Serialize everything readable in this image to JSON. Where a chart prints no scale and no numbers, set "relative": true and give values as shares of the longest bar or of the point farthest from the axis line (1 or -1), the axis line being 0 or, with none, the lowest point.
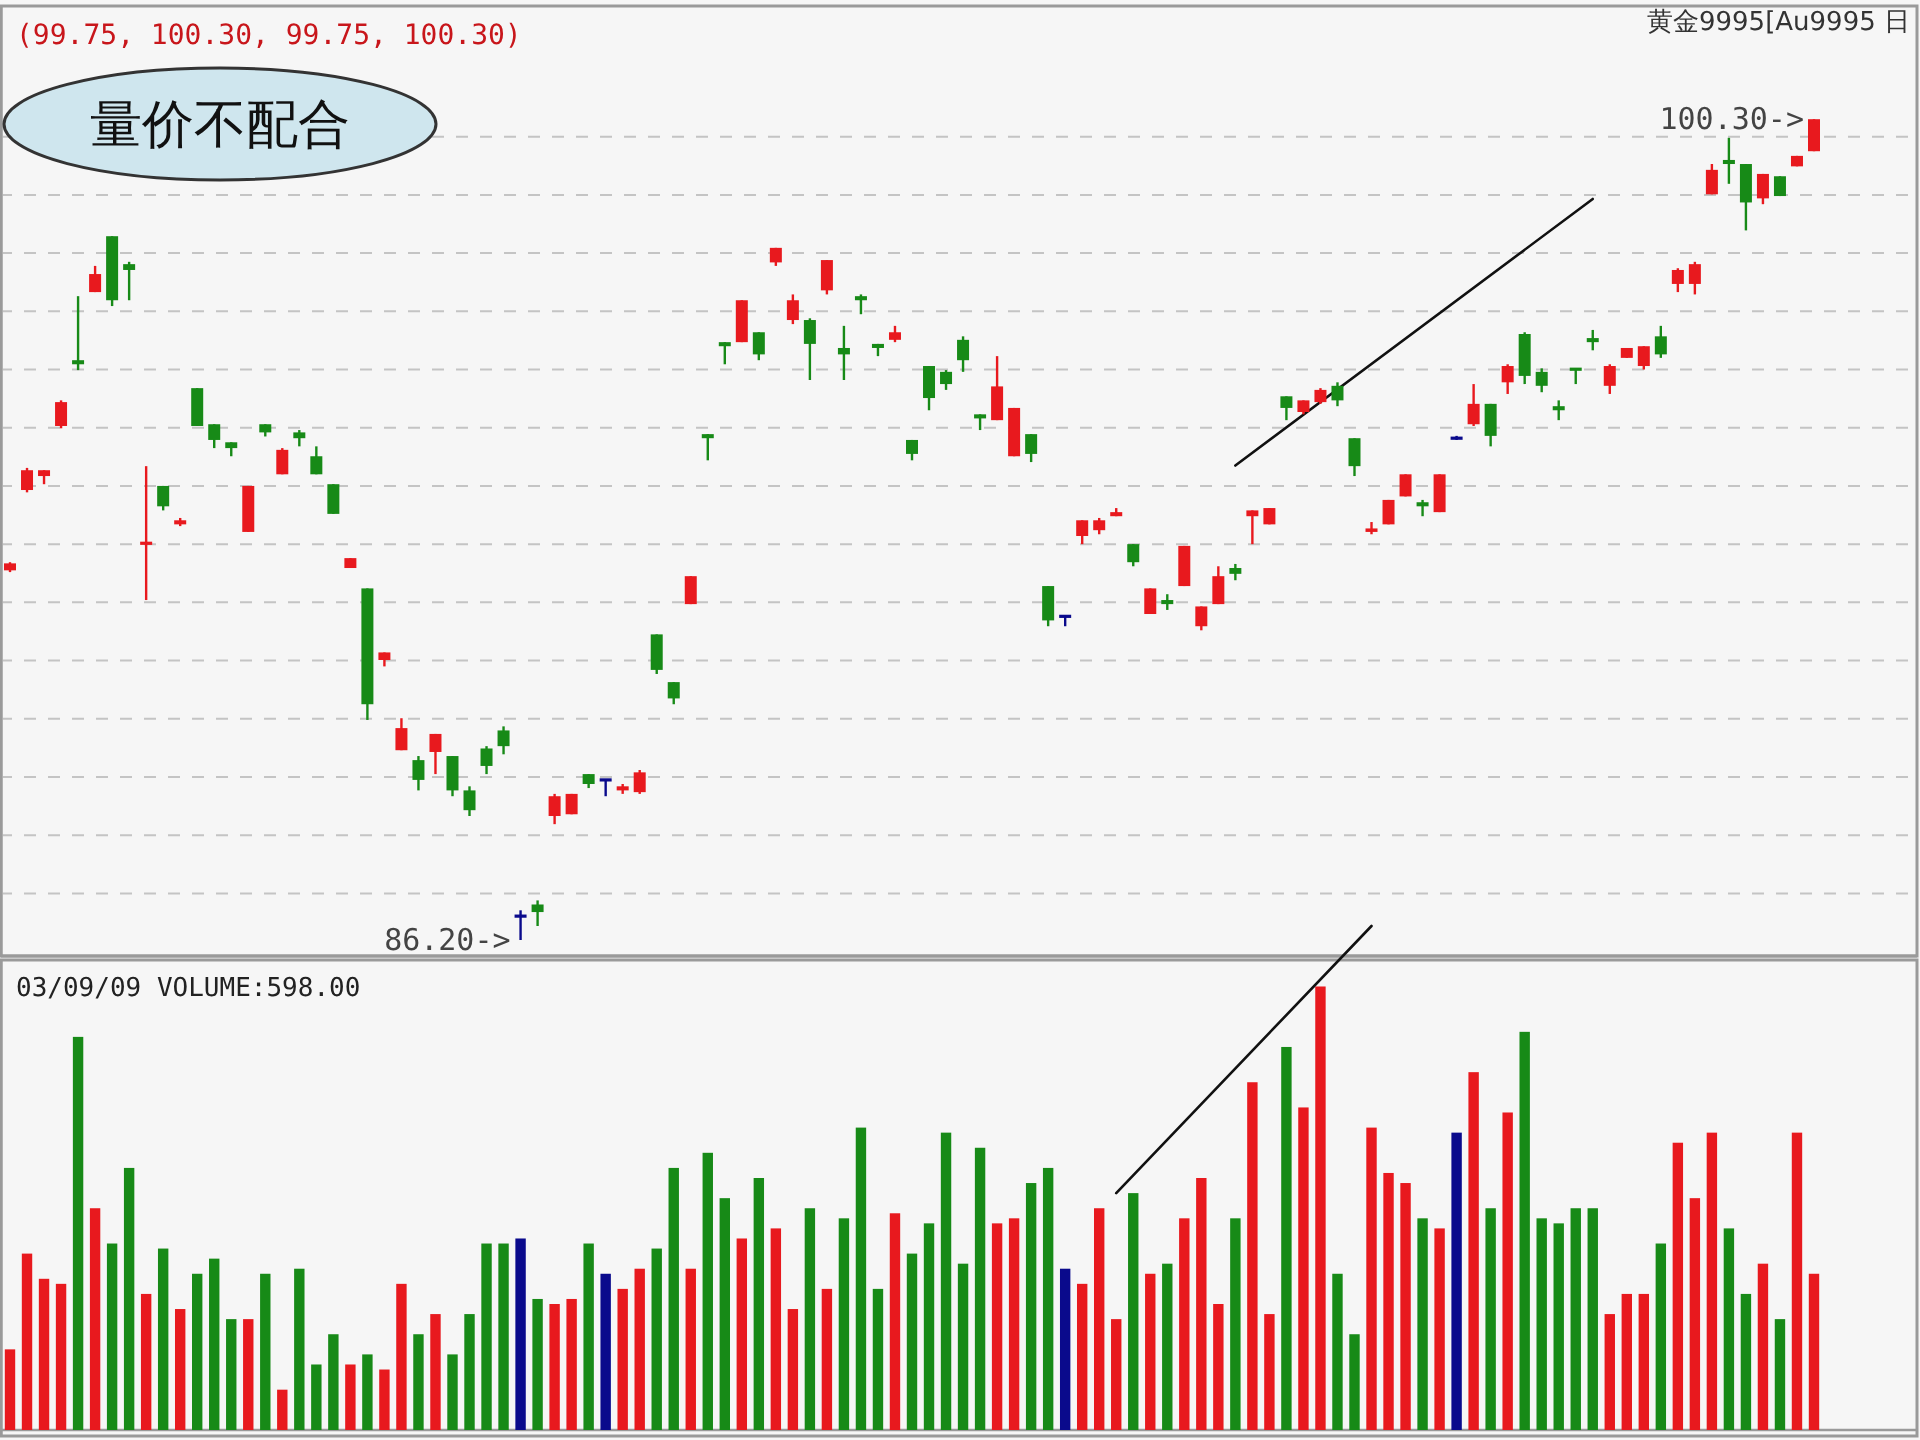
{
  "chart_data": [
    {
      "type": "candlestick",
      "categories": [
        null,
        null,
        null,
        null,
        null,
        null,
        null,
        null,
        null,
        null,
        null,
        null,
        null,
        null,
        null,
        null,
        null,
        null,
        null,
        null,
        null,
        null,
        null,
        null,
        null,
        null,
        null,
        null,
        null,
        null,
        null,
        null,
        null,
        null,
        null,
        null,
        null,
        null,
        null,
        null,
        null,
        null,
        null,
        null,
        null,
        null,
        null,
        null,
        null,
        null,
        null,
        null,
        null,
        null,
        null,
        null,
        null,
        null,
        null,
        null,
        null,
        null,
        null,
        null,
        null,
        null,
        null,
        null,
        null,
        null,
        null,
        null,
        null,
        null,
        null,
        null,
        null,
        null,
        null,
        null,
        null,
        null,
        null,
        null,
        null,
        null,
        null,
        null,
        null,
        null,
        null,
        null,
        null,
        null,
        null,
        null,
        null,
        null,
        null,
        null,
        null,
        null,
        null,
        null,
        null,
        null,
        null
      ],
      "ohlc": [
        [
          92.55,
          92.69,
          92.52,
          92.67
        ],
        [
          93.93,
          94.31,
          93.89,
          94.27
        ],
        [
          94.17,
          94.27,
          94.03,
          94.27
        ],
        [
          95.03,
          95.47,
          94.99,
          95.44
        ],
        [
          96.16,
          97.26,
          95.99,
          96.09
        ],
        [
          97.33,
          97.78,
          97.33,
          97.64
        ],
        [
          98.29,
          98.29,
          97.09,
          97.19
        ],
        [
          97.81,
          97.85,
          97.19,
          97.71
        ],
        [
          93.0,
          94.34,
          92.04,
          93.03
        ],
        [
          94.0,
          94.0,
          93.58,
          93.65
        ],
        [
          93.34,
          93.45,
          93.31,
          93.41
        ],
        [
          95.68,
          95.68,
          95.03,
          95.03
        ],
        [
          95.06,
          95.06,
          94.65,
          94.79
        ],
        [
          94.75,
          94.75,
          94.51,
          94.65
        ],
        [
          93.21,
          94.0,
          93.21,
          94.0
        ],
        [
          95.06,
          95.06,
          94.85,
          94.92
        ],
        [
          94.2,
          94.65,
          94.2,
          94.62
        ],
        [
          94.92,
          94.96,
          94.68,
          94.82
        ],
        [
          94.51,
          94.68,
          94.2,
          94.2
        ],
        [
          94.03,
          94.03,
          93.52,
          93.52
        ],
        [
          92.59,
          92.76,
          92.59,
          92.76
        ],
        [
          92.24,
          92.24,
          89.98,
          90.25
        ],
        [
          91.01,
          91.14,
          90.9,
          91.14
        ],
        [
          89.46,
          90.01,
          89.46,
          89.84
        ],
        [
          89.29,
          89.36,
          88.77,
          88.95
        ],
        [
          89.43,
          89.74,
          89.05,
          89.74
        ],
        [
          89.36,
          89.36,
          88.67,
          88.77
        ],
        [
          88.77,
          88.84,
          88.33,
          88.43
        ],
        [
          89.49,
          89.53,
          89.05,
          89.19
        ],
        [
          89.8,
          89.87,
          89.39,
          89.53
        ],
        [
          86.61,
          86.71,
          86.2,
          86.61
        ],
        [
          86.81,
          86.88,
          86.44,
          86.68
        ],
        [
          88.33,
          88.71,
          88.19,
          88.67
        ],
        [
          88.36,
          88.71,
          88.36,
          88.71
        ],
        [
          89.05,
          89.05,
          88.81,
          88.88
        ],
        [
          88.95,
          88.95,
          88.67,
          88.95
        ],
        [
          88.77,
          88.88,
          88.71,
          88.84
        ],
        [
          88.74,
          89.12,
          88.71,
          89.08
        ],
        [
          91.45,
          91.45,
          90.77,
          90.84
        ],
        [
          90.63,
          90.63,
          90.25,
          90.35
        ],
        [
          91.97,
          92.45,
          91.97,
          92.45
        ],
        [
          94.89,
          94.89,
          94.44,
          94.82
        ],
        [
          96.47,
          96.47,
          96.09,
          96.4
        ],
        [
          96.47,
          97.19,
          96.47,
          97.19
        ],
        [
          96.64,
          96.64,
          96.16,
          96.26
        ],
        [
          97.84,
          98.09,
          97.78,
          98.09
        ],
        [
          96.85,
          97.29,
          96.78,
          97.19
        ],
        [
          96.85,
          96.88,
          95.82,
          96.44
        ],
        [
          97.36,
          97.88,
          97.29,
          97.88
        ],
        [
          96.37,
          96.75,
          95.82,
          96.26
        ],
        [
          97.26,
          97.29,
          96.95,
          97.19
        ],
        [
          96.44,
          96.44,
          96.23,
          96.37
        ],
        [
          96.51,
          96.75,
          96.47,
          96.64
        ],
        [
          94.79,
          94.79,
          94.44,
          94.55
        ],
        [
          96.06,
          96.06,
          95.3,
          95.51
        ],
        [
          95.96,
          95.99,
          95.65,
          95.75
        ],
        [
          96.51,
          96.57,
          95.96,
          96.16
        ],
        [
          95.23,
          95.23,
          94.96,
          95.16
        ],
        [
          95.13,
          96.23,
          95.13,
          95.71
        ],
        [
          94.51,
          95.34,
          94.51,
          95.34
        ],
        [
          94.89,
          94.89,
          94.41,
          94.55
        ],
        [
          92.28,
          92.28,
          91.59,
          91.69
        ],
        [
          91.76,
          91.76,
          91.59,
          91.76
        ],
        [
          93.14,
          93.41,
          93.0,
          93.41
        ],
        [
          93.24,
          93.45,
          93.17,
          93.41
        ],
        [
          93.48,
          93.62,
          93.48,
          93.55
        ],
        [
          93.0,
          93.0,
          92.62,
          92.69
        ],
        [
          91.8,
          92.24,
          91.8,
          92.24
        ],
        [
          92.04,
          92.14,
          91.87,
          91.97
        ],
        [
          92.28,
          92.97,
          92.28,
          92.97
        ],
        [
          91.59,
          91.93,
          91.52,
          91.93
        ],
        [
          91.97,
          92.62,
          91.97,
          92.45
        ],
        [
          92.59,
          92.66,
          92.38,
          92.49
        ],
        [
          93.48,
          93.58,
          93.0,
          93.58
        ],
        [
          93.34,
          93.62,
          93.34,
          93.62
        ],
        [
          95.54,
          95.54,
          95.13,
          95.34
        ],
        [
          95.27,
          95.47,
          95.23,
          95.47
        ],
        [
          95.44,
          95.68,
          95.41,
          95.65
        ],
        [
          95.72,
          95.78,
          95.37,
          95.47
        ],
        [
          94.82,
          94.82,
          94.17,
          94.34
        ],
        [
          93.21,
          93.38,
          93.17,
          93.27
        ],
        [
          93.34,
          93.76,
          93.34,
          93.76
        ],
        [
          93.82,
          94.2,
          93.82,
          94.2
        ],
        [
          93.72,
          93.76,
          93.48,
          93.65
        ],
        [
          93.55,
          94.2,
          93.55,
          94.2
        ],
        [
          94.82,
          94.86,
          94.79,
          94.82
        ],
        [
          95.06,
          95.75,
          95.03,
          95.41
        ],
        [
          95.41,
          95.41,
          94.68,
          94.86
        ],
        [
          95.78,
          96.09,
          95.58,
          96.06
        ],
        [
          96.61,
          96.64,
          95.75,
          95.89
        ],
        [
          95.96,
          96.02,
          95.61,
          95.72
        ],
        [
          95.37,
          95.47,
          95.13,
          95.3
        ],
        [
          96.02,
          96.02,
          95.75,
          95.99
        ],
        [
          96.54,
          96.68,
          96.33,
          96.47
        ],
        [
          95.72,
          96.09,
          95.58,
          96.06
        ],
        [
          96.2,
          96.37,
          96.2,
          96.37
        ],
        [
          96.06,
          96.4,
          96.0,
          96.4
        ],
        [
          96.57,
          96.75,
          96.2,
          96.26
        ],
        [
          97.47,
          97.74,
          97.33,
          97.71
        ],
        [
          97.47,
          97.85,
          97.29,
          97.81
        ],
        [
          99.01,
          99.53,
          99.01,
          99.43
        ],
        [
          99.6,
          99.98,
          99.19,
          99.53
        ],
        [
          99.53,
          99.53,
          98.39,
          98.87
        ],
        [
          98.94,
          99.36,
          98.84,
          99.36
        ],
        [
          99.32,
          99.32,
          98.98,
          98.98
        ],
        [
          99.49,
          99.67,
          99.49,
          99.67
        ],
        [
          99.75,
          100.3,
          99.75,
          100.3
        ]
      ],
      "colors": [
        "#e8191e",
        "#e8191e",
        "#e8191e",
        "#e8191e",
        "#178a17",
        "#e8191e",
        "#178a17",
        "#178a17",
        "#e8191e",
        "#178a17",
        "#e8191e",
        "#178a17",
        "#178a17",
        "#178a17",
        "#e8191e",
        "#178a17",
        "#e8191e",
        "#178a17",
        "#178a17",
        "#178a17",
        "#e8191e",
        "#178a17",
        "#e8191e",
        "#e8191e",
        "#178a17",
        "#e8191e",
        "#178a17",
        "#178a17",
        "#178a17",
        "#178a17",
        "#0a0a8c",
        "#178a17",
        "#e8191e",
        "#e8191e",
        "#178a17",
        "#0a0a8c",
        "#e8191e",
        "#e8191e",
        "#178a17",
        "#178a17",
        "#e8191e",
        "#178a17",
        "#178a17",
        "#e8191e",
        "#178a17",
        "#e8191e",
        "#e8191e",
        "#178a17",
        "#e8191e",
        "#178a17",
        "#178a17",
        "#178a17",
        "#e8191e",
        "#178a17",
        "#178a17",
        "#178a17",
        "#178a17",
        "#178a17",
        "#e8191e",
        "#e8191e",
        "#178a17",
        "#178a17",
        "#0a0a8c",
        "#e8191e",
        "#e8191e",
        "#e8191e",
        "#178a17",
        "#e8191e",
        "#178a17",
        "#e8191e",
        "#e8191e",
        "#e8191e",
        "#178a17",
        "#e8191e",
        "#e8191e",
        "#178a17",
        "#e8191e",
        "#e8191e",
        "#178a17",
        "#178a17",
        "#e8191e",
        "#e8191e",
        "#e8191e",
        "#178a17",
        "#e8191e",
        "#0a0a8c",
        "#e8191e",
        "#178a17",
        "#e8191e",
        "#178a17",
        "#178a17",
        "#178a17",
        "#178a17",
        "#178a17",
        "#e8191e",
        "#e8191e",
        "#e8191e",
        "#178a17",
        "#e8191e",
        "#e8191e",
        "#e8191e",
        "#178a17",
        "#178a17",
        "#e8191e",
        "#178a17",
        "#e8191e",
        "#e8191e"
      ],
      "series": [
        {
          "type": "line",
          "color": "#111111",
          "values": [
            null,
            null,
            null,
            null,
            null,
            null,
            null,
            null,
            null,
            null,
            null,
            null,
            null,
            null,
            null,
            null,
            null,
            null,
            null,
            null,
            null,
            null,
            null,
            null,
            null,
            null,
            null,
            null,
            null,
            null,
            null,
            null,
            null,
            null,
            null,
            null,
            null,
            null,
            null,
            null,
            null,
            null,
            null,
            null,
            null,
            null,
            null,
            null,
            null,
            null,
            null,
            null,
            null,
            null,
            null,
            null,
            null,
            null,
            null,
            null,
            null,
            null,
            null,
            null,
            null,
            null,
            null,
            null,
            null,
            null,
            null,
            null,
            94.35,
            null,
            null,
            null,
            null,
            null,
            null,
            null,
            null,
            null,
            null,
            null,
            null,
            null,
            null,
            null,
            null,
            null,
            null,
            null,
            null,
            98.93,
            null,
            null,
            null,
            null,
            null,
            null,
            null,
            null,
            null,
            null,
            null,
            null,
            null
          ]
        }
      ],
      "yticks": [
        {
          "value": 87,
          "label": null
        },
        {
          "value": 88,
          "label": null
        },
        {
          "value": 89,
          "label": null
        },
        {
          "value": 90,
          "label": null
        },
        {
          "value": 91,
          "label": null
        },
        {
          "value": 92,
          "label": null
        },
        {
          "value": 93,
          "label": null
        },
        {
          "value": 94,
          "label": null
        },
        {
          "value": 95,
          "label": null
        },
        {
          "value": 96,
          "label": null
        },
        {
          "value": 97,
          "label": null
        },
        {
          "value": 98,
          "label": null
        },
        {
          "value": 99,
          "label": null
        },
        {
          "value": 100,
          "label": null
        }
      ],
      "grid": "y",
      "annotations": [
        "(99.75, 100.30, 99.75, 100.30)",
        "黄金9995[Au9995 日",
        "量价不配合",
        "100.30->",
        "86.20->"
      ]
    },
    {
      "type": "bar",
      "relative": true,
      "categories": [
        null,
        null,
        null,
        null,
        null,
        null,
        null,
        null,
        null,
        null,
        null,
        null,
        null,
        null,
        null,
        null,
        null,
        null,
        null,
        null,
        null,
        null,
        null,
        null,
        null,
        null,
        null,
        null,
        null,
        null,
        null,
        null,
        null,
        null,
        null,
        null,
        null,
        null,
        null,
        null,
        null,
        null,
        null,
        null,
        null,
        null,
        null,
        null,
        null,
        null,
        null,
        null,
        null,
        null,
        null,
        null,
        null,
        null,
        null,
        null,
        null,
        null,
        null,
        null,
        null,
        null,
        null,
        null,
        null,
        null,
        null,
        null,
        null,
        null,
        null,
        null,
        null,
        null,
        null,
        null,
        null,
        null,
        null,
        null,
        null,
        null,
        null,
        null,
        null,
        null,
        null,
        null,
        null,
        null,
        null,
        null,
        null,
        null,
        null,
        null,
        null,
        null,
        null,
        null,
        null,
        null,
        null
      ],
      "series": [
        {
          "type": "bar",
          "values": [
            0.16,
            0.35,
            0.3,
            0.29,
            0.78,
            0.44,
            0.37,
            0.52,
            0.27,
            0.36,
            0.24,
            0.31,
            0.34,
            0.22,
            0.22,
            0.31,
            0.08,
            0.32,
            0.13,
            0.19,
            0.13,
            0.15,
            0.12,
            0.29,
            0.19,
            0.23,
            0.15,
            0.23,
            0.37,
            0.37,
            0.38,
            0.26,
            0.25,
            0.26,
            0.37,
            0.31,
            0.28,
            0.32,
            0.36,
            0.52,
            0.32,
            0.55,
            0.46,
            0.38,
            0.5,
            0.4,
            0.24,
            0.44,
            0.28,
            0.42,
            0.6,
            0.28,
            0.43,
            0.35,
            0.41,
            0.59,
            0.33,
            0.56,
            0.41,
            0.42,
            0.49,
            0.52,
            0.32,
            0.29,
            0.44,
            0.22,
            0.47,
            0.31,
            0.33,
            0.42,
            0.5,
            0.25,
            0.42,
            0.69,
            0.23,
            0.76,
            0.64,
            0.88,
            0.31,
            0.19,
            0.6,
            0.51,
            0.49,
            0.42,
            0.4,
            0.59,
            0.71,
            0.44,
            0.63,
            0.79,
            0.42,
            0.41,
            0.44,
            0.44,
            0.23,
            0.27,
            0.27,
            0.37,
            0.57,
            0.46,
            0.59,
            0.4,
            0.27,
            0.33,
            0.22,
            0.59,
            0.31
          ],
          "colors": [
            "#e8191e",
            "#e8191e",
            "#e8191e",
            "#e8191e",
            "#178a17",
            "#e8191e",
            "#178a17",
            "#178a17",
            "#e8191e",
            "#178a17",
            "#e8191e",
            "#178a17",
            "#178a17",
            "#178a17",
            "#e8191e",
            "#178a17",
            "#e8191e",
            "#178a17",
            "#178a17",
            "#178a17",
            "#e8191e",
            "#178a17",
            "#e8191e",
            "#e8191e",
            "#178a17",
            "#e8191e",
            "#178a17",
            "#178a17",
            "#178a17",
            "#178a17",
            "#0a0a8c",
            "#178a17",
            "#e8191e",
            "#e8191e",
            "#178a17",
            "#0a0a8c",
            "#e8191e",
            "#e8191e",
            "#178a17",
            "#178a17",
            "#e8191e",
            "#178a17",
            "#178a17",
            "#e8191e",
            "#178a17",
            "#e8191e",
            "#e8191e",
            "#178a17",
            "#e8191e",
            "#178a17",
            "#178a17",
            "#178a17",
            "#e8191e",
            "#178a17",
            "#178a17",
            "#178a17",
            "#178a17",
            "#178a17",
            "#e8191e",
            "#e8191e",
            "#178a17",
            "#178a17",
            "#0a0a8c",
            "#e8191e",
            "#e8191e",
            "#e8191e",
            "#178a17",
            "#e8191e",
            "#178a17",
            "#e8191e",
            "#e8191e",
            "#e8191e",
            "#178a17",
            "#e8191e",
            "#e8191e",
            "#178a17",
            "#e8191e",
            "#e8191e",
            "#178a17",
            "#178a17",
            "#e8191e",
            "#e8191e",
            "#e8191e",
            "#178a17",
            "#e8191e",
            "#0a0a8c",
            "#e8191e",
            "#178a17",
            "#e8191e",
            "#178a17",
            "#178a17",
            "#178a17",
            "#178a17",
            "#178a17",
            "#e8191e",
            "#e8191e",
            "#e8191e",
            "#178a17",
            "#e8191e",
            "#e8191e",
            "#e8191e",
            "#178a17",
            "#178a17",
            "#e8191e",
            "#178a17",
            "#e8191e",
            "#e8191e"
          ]
        },
        {
          "type": "line",
          "color": "#111111",
          "values": [
            null,
            null,
            null,
            null,
            null,
            null,
            null,
            null,
            null,
            null,
            null,
            null,
            null,
            null,
            null,
            null,
            null,
            null,
            null,
            null,
            null,
            null,
            null,
            null,
            null,
            null,
            null,
            null,
            null,
            null,
            null,
            null,
            null,
            null,
            null,
            null,
            null,
            null,
            null,
            null,
            null,
            null,
            null,
            null,
            null,
            null,
            null,
            null,
            null,
            null,
            null,
            null,
            null,
            null,
            null,
            null,
            null,
            null,
            null,
            null,
            null,
            null,
            null,
            null,
            null,
            0.47,
            null,
            null,
            null,
            null,
            null,
            null,
            null,
            null,
            null,
            null,
            null,
            null,
            null,
            null,
            1.0,
            null,
            null,
            null,
            null,
            null,
            null,
            null,
            null,
            null,
            null,
            null,
            null,
            null,
            null,
            null,
            null,
            null,
            null,
            null,
            null,
            null,
            null,
            null,
            null,
            null,
            null
          ]
        }
      ],
      "annotations": [
        "03/09/09 VOLUME:598.00"
      ]
    }
  ]
}
